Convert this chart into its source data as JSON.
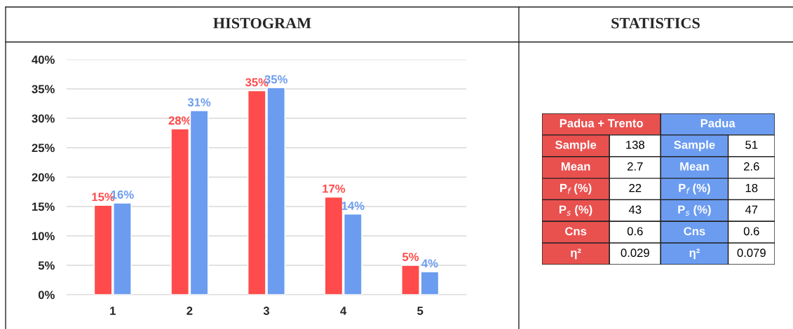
{
  "chart_data": [
    {
      "type": "bar",
      "title": "HISTOGRAM",
      "categories": [
        "1",
        "2",
        "3",
        "4",
        "5"
      ],
      "series": [
        {
          "color": "#ff4b4b",
          "values": [
            15.2,
            28.2,
            34.7,
            16.6,
            5.0
          ],
          "value_labels": [
            "15%",
            "28%",
            "35%",
            "17%",
            "5%"
          ]
        },
        {
          "color": "#6b9cf0",
          "values": [
            15.6,
            31.3,
            35.2,
            13.7,
            3.9
          ],
          "value_labels": [
            "16%",
            "31%",
            "35%",
            "14%",
            "4%"
          ]
        }
      ],
      "ylim": [
        0,
        40
      ],
      "yticks": [
        {
          "value": 0,
          "label": "0%"
        },
        {
          "value": 5,
          "label": "5%"
        },
        {
          "value": 10,
          "label": "10%"
        },
        {
          "value": 15,
          "label": "15%"
        },
        {
          "value": 20,
          "label": "20%"
        },
        {
          "value": 25,
          "label": "25%"
        },
        {
          "value": 30,
          "label": "30%"
        },
        {
          "value": 35,
          "label": "35%"
        },
        {
          "value": 40,
          "label": "40%"
        }
      ],
      "grid": "y",
      "legend": false
    },
    {
      "type": "other",
      "title": "STATISTICS",
      "annotations": [
        "Padua + Trento",
        "Padua",
        "Sample",
        "138",
        "Sample",
        "51",
        "Mean",
        "2.7",
        "Mean",
        "2.6",
        "P$_{f}$ (%)",
        "22",
        "P$_{f}$ (%)",
        "18",
        "P$_{s}$ (%)",
        "43",
        "P$_{s}$ (%)",
        "47",
        "Cns",
        "0.6",
        "Cns",
        "0.6",
        "η²",
        "0.029",
        "η²",
        "0.079"
      ]
    }
  ]
}
